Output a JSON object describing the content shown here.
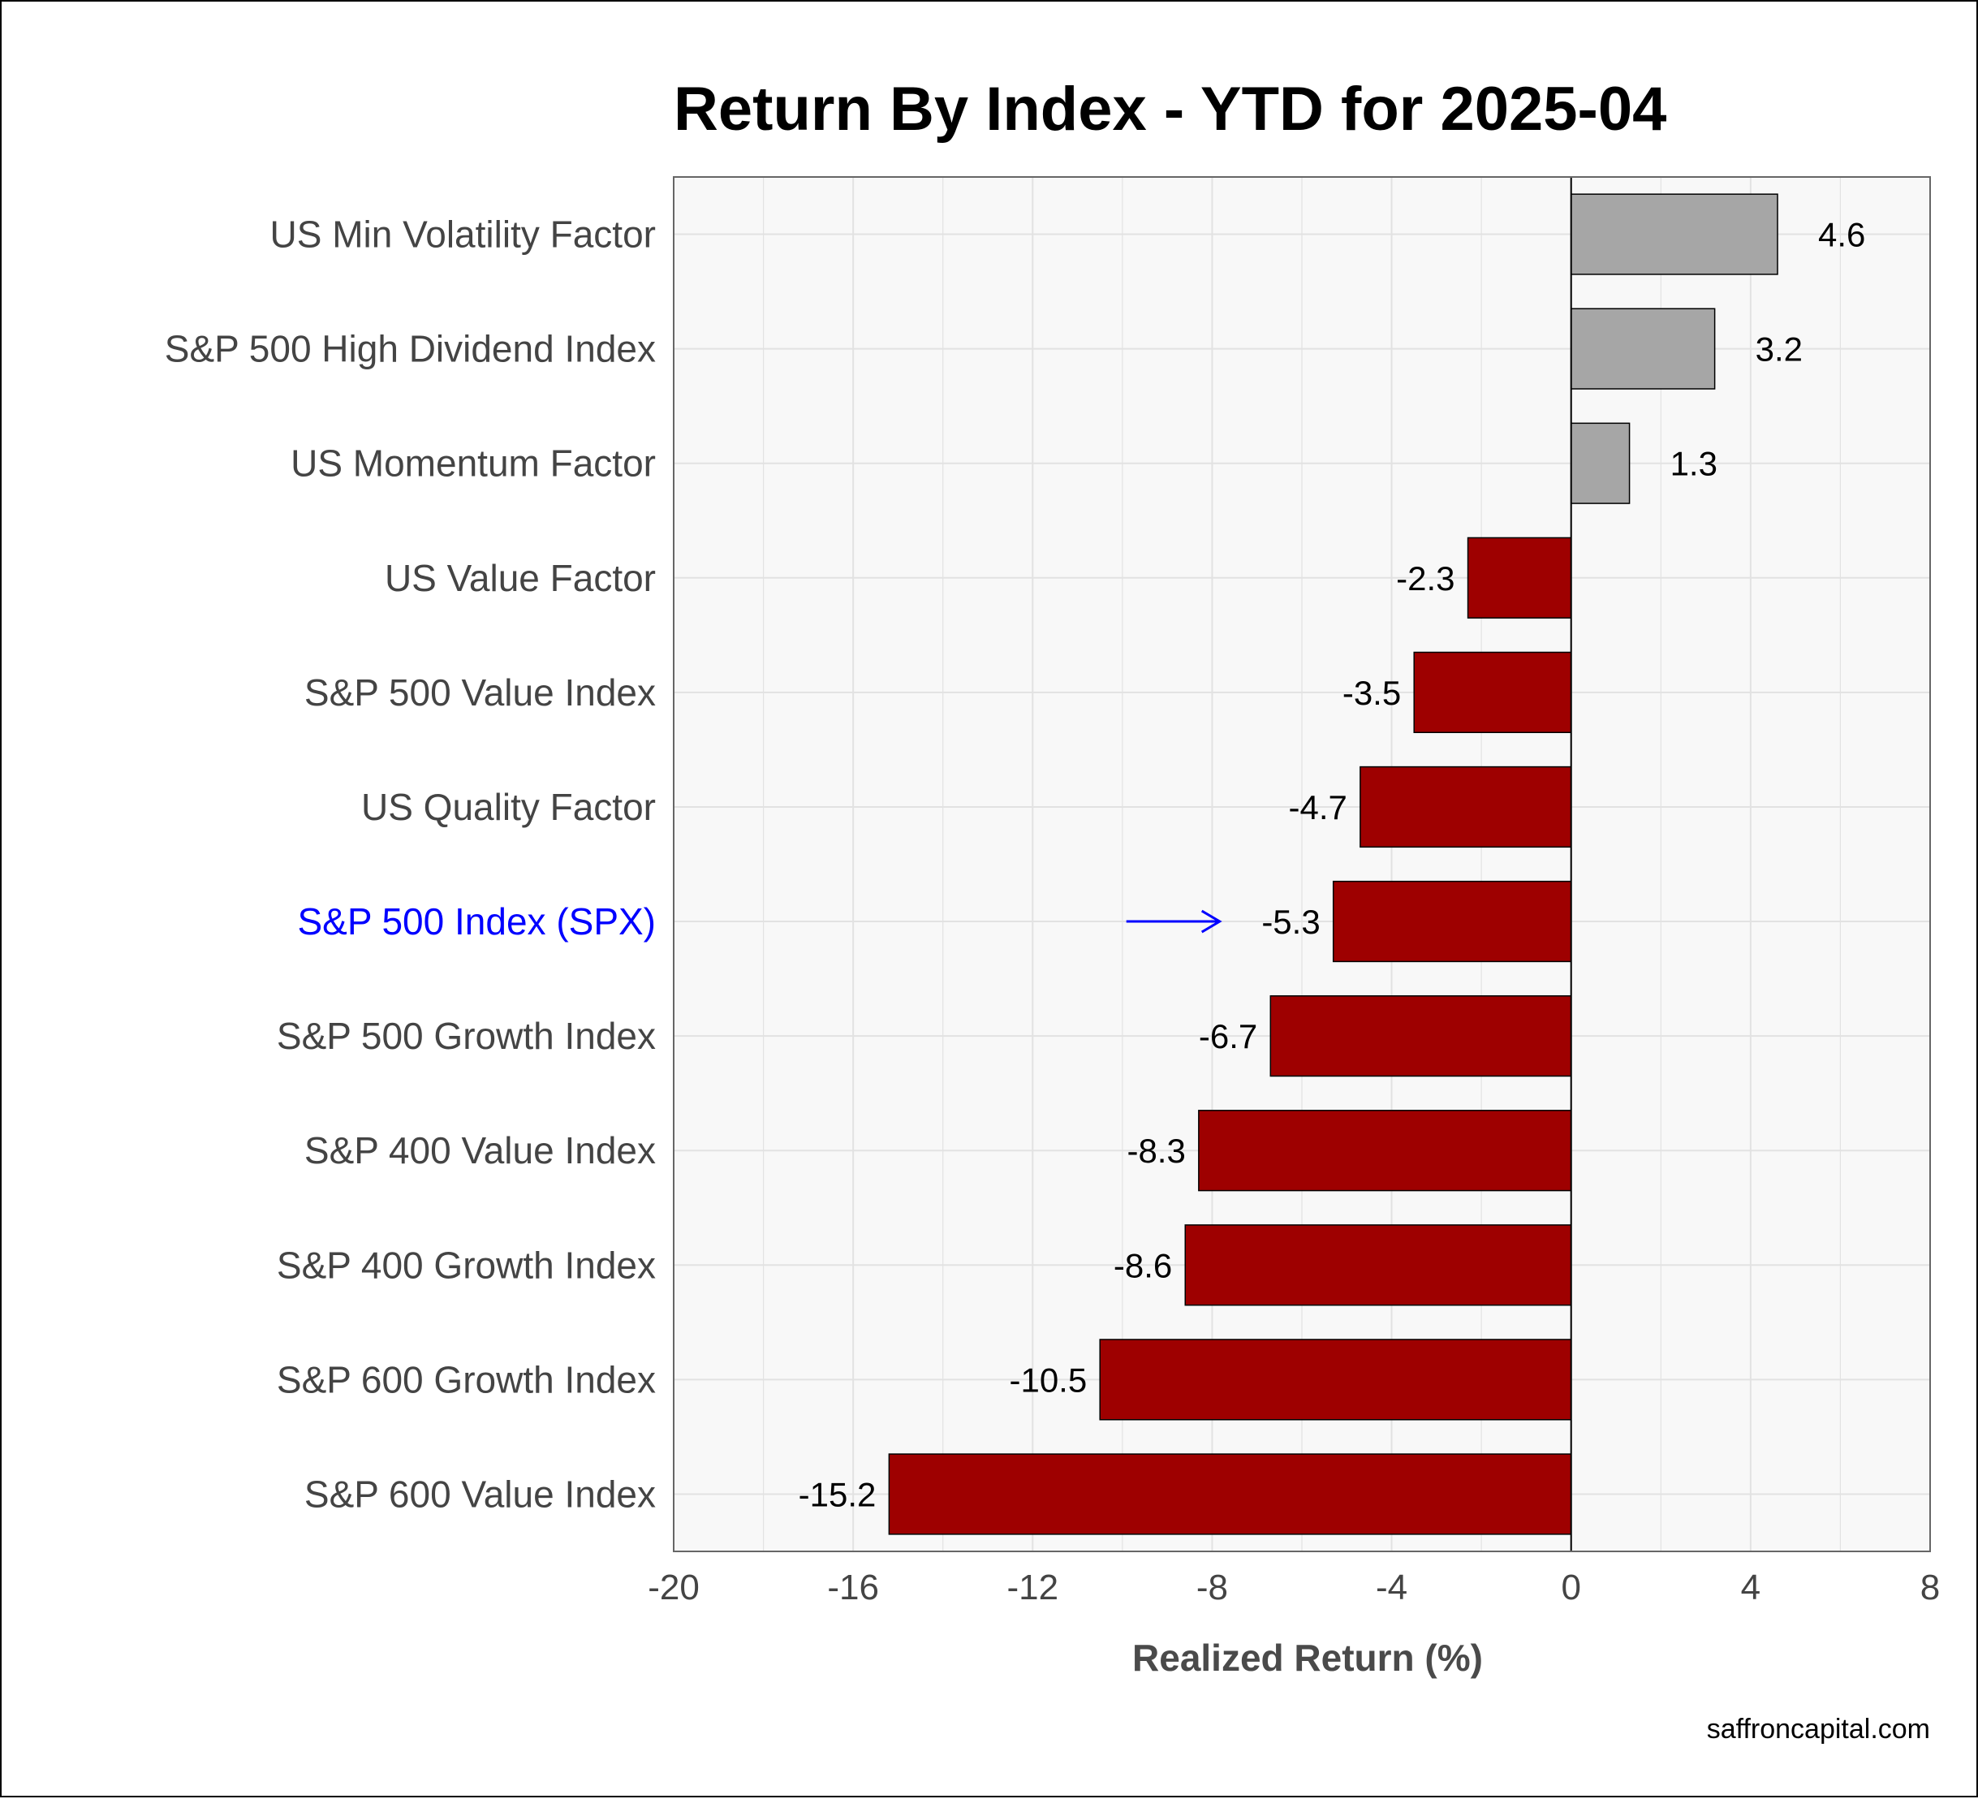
{
  "chart_data": {
    "type": "bar",
    "orientation": "horizontal",
    "title": "Return By Index - YTD for 2025-04",
    "xlabel": "Realized Return (%)",
    "ylabel": "",
    "xlim": [
      -20,
      8
    ],
    "x_ticks": [
      -20,
      -16,
      -12,
      -8,
      -4,
      0,
      4,
      8
    ],
    "x_tick_labels": [
      "-20",
      "-16",
      "-12",
      "-8",
      "-4",
      "0",
      "4",
      "8"
    ],
    "categories": [
      "US Min Volatility Factor",
      "S&P 500 High Dividend Index",
      "US Momentum Factor",
      "US Value Factor",
      "S&P 500 Value Index",
      "US Quality Factor",
      "S&P 500 Index (SPX)",
      "S&P 500 Growth Index",
      "S&P 400 Value Index",
      "S&P 400 Growth Index",
      "S&P 600 Growth Index",
      "S&P 600 Value Index"
    ],
    "values": [
      4.6,
      3.2,
      1.3,
      -2.3,
      -3.5,
      -4.7,
      -5.3,
      -6.7,
      -8.3,
      -8.6,
      -10.5,
      -15.2
    ],
    "value_labels": [
      "4.6",
      "3.2",
      "1.3",
      "-2.3",
      "-3.5",
      "-4.7",
      "-5.3",
      "-6.7",
      "-8.3",
      "-8.6",
      "-10.5",
      "-15.2"
    ],
    "highlighted_category": "S&P 500 Index (SPX)",
    "grid": true,
    "legend": "none",
    "colors": {
      "positive": "#a6a6a6",
      "negative": "#9e0000",
      "highlight_label": "#0000ff",
      "highlight_arrow": "#0000ff",
      "plot_background": "#f8f8f8",
      "grid": "#e2e2e2",
      "bar_outline": "#000000"
    }
  },
  "source": "saffroncapital.com"
}
